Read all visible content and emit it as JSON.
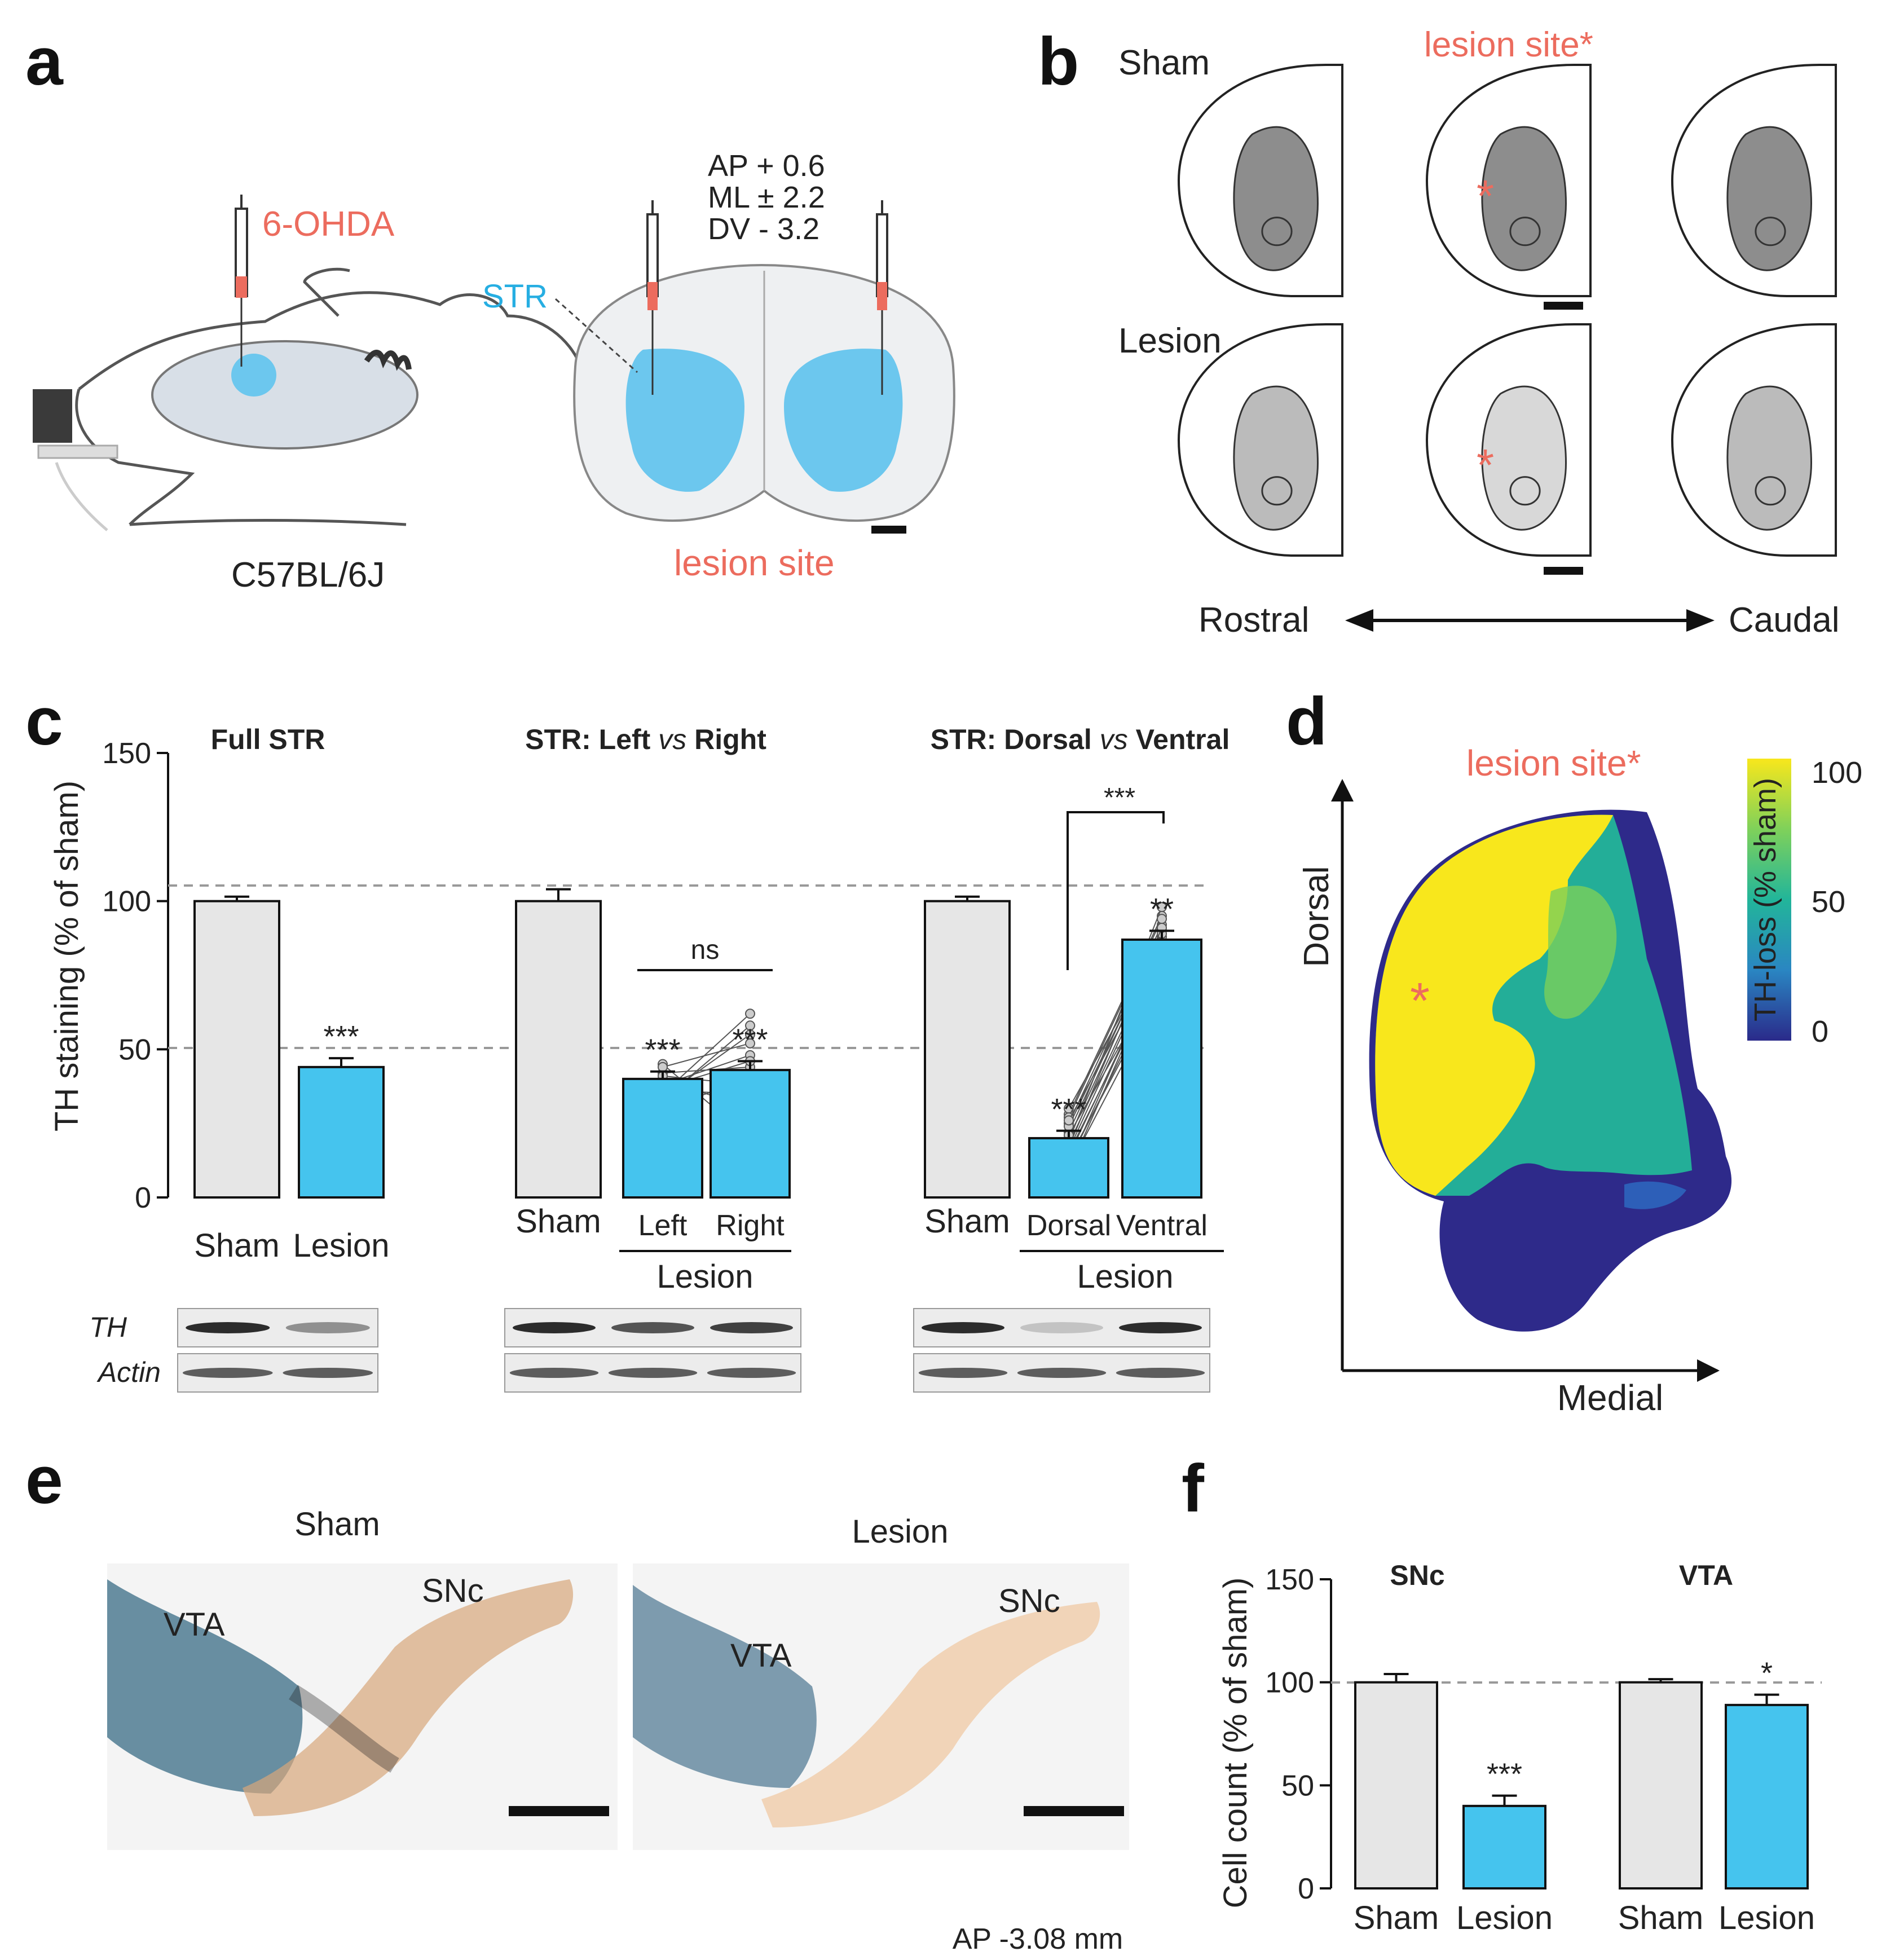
{
  "panel_labels": {
    "a": "a",
    "b": "b",
    "c": "c",
    "d": "d",
    "e": "e",
    "f": "f"
  },
  "panel_a": {
    "injectant": "6-OHDA",
    "coords": [
      "AP  + 0.6",
      "ML  ± 2.2",
      "DV  -  3.2"
    ],
    "region": "STR",
    "lesion_label": "lesion site",
    "strain": "C57BL/6J"
  },
  "panel_b": {
    "row_sham": "Sham",
    "row_lesion": "Lesion",
    "lesion_label": "lesion site*",
    "asterisk": "*",
    "rostral": "Rostral",
    "caudal": "Caudal"
  },
  "panel_c": {
    "ylabel": "TH staining (% of sham)",
    "yticks": [
      "0",
      "50",
      "100",
      "150"
    ],
    "subplots": [
      {
        "title": "Full STR",
        "categories": [
          "Sham",
          "Lesion"
        ],
        "values": [
          100,
          44
        ],
        "errors": [
          1.5,
          3
        ],
        "stars": [
          "",
          "***"
        ]
      },
      {
        "title_pre": "STR: Left ",
        "title_it": "vs",
        "title_post": " Right",
        "categories": [
          "Sham",
          "Left",
          "Right"
        ],
        "values": [
          100,
          40,
          43
        ],
        "errors": [
          4,
          2.5,
          3
        ],
        "stars": [
          "",
          "***",
          "***"
        ],
        "bracket": "ns",
        "group_label": "Lesion"
      },
      {
        "title_pre": "STR: Dorsal ",
        "title_it": "vs",
        "title_post": " Ventral",
        "categories": [
          "Sham",
          "Dorsal",
          "Ventral"
        ],
        "values": [
          100,
          20,
          87
        ],
        "errors": [
          1.5,
          2.5,
          3
        ],
        "stars": [
          "",
          "***",
          "**"
        ],
        "bracket": "***",
        "group_label": "Lesion"
      }
    ],
    "blot_labels": [
      "TH",
      "Actin"
    ]
  },
  "panel_d": {
    "lesion_label": "lesion site*",
    "asterisk": "*",
    "y_axis": "Dorsal",
    "x_axis": "Medial",
    "colorbar_label": "TH-loss (% sham)",
    "colorbar_ticks": [
      "100",
      "50",
      "0"
    ]
  },
  "panel_e": {
    "sham_title": "Sham",
    "lesion_title": "Lesion",
    "vta": "VTA",
    "snc": "SNc",
    "ap_label": "AP -3.08 mm"
  },
  "panel_f": {
    "ylabel": "Cell count (% of sham)",
    "yticks": [
      "0",
      "50",
      "100",
      "150"
    ],
    "subplots": [
      {
        "title": "SNc",
        "categories": [
          "Sham",
          "Lesion"
        ],
        "values": [
          100,
          40
        ],
        "errors": [
          4,
          5
        ],
        "stars": [
          "",
          "***"
        ]
      },
      {
        "title": "VTA",
        "categories": [
          "Sham",
          "Lesion"
        ],
        "values": [
          100,
          89
        ],
        "errors": [
          1.5,
          5
        ],
        "stars": [
          "",
          "*"
        ]
      }
    ]
  },
  "chart_data": [
    {
      "type": "bar",
      "title": "Full STR",
      "ylabel": "TH staining (% of sham)",
      "ylim": [
        0,
        150
      ],
      "categories": [
        "Sham",
        "Lesion"
      ],
      "values": [
        100,
        44
      ]
    },
    {
      "type": "bar",
      "title": "STR: Left vs Right",
      "ylabel": "TH staining (% of sham)",
      "ylim": [
        0,
        150
      ],
      "categories": [
        "Sham",
        "Left",
        "Right"
      ],
      "values": [
        100,
        40,
        43
      ]
    },
    {
      "type": "bar",
      "title": "STR: Dorsal vs Ventral",
      "ylabel": "TH staining (% of sham)",
      "ylim": [
        0,
        150
      ],
      "categories": [
        "Sham",
        "Dorsal",
        "Ventral"
      ],
      "values": [
        100,
        20,
        87
      ]
    },
    {
      "type": "bar",
      "title": "SNc",
      "ylabel": "Cell count (% of sham)",
      "ylim": [
        0,
        150
      ],
      "categories": [
        "Sham",
        "Lesion"
      ],
      "values": [
        100,
        40
      ]
    },
    {
      "type": "bar",
      "title": "VTA",
      "ylabel": "Cell count (% of sham)",
      "ylim": [
        0,
        150
      ],
      "categories": [
        "Sham",
        "Lesion"
      ],
      "values": [
        100,
        89
      ]
    }
  ],
  "colors": {
    "sham": "#e6e6e6",
    "lesion": "#45c4ee",
    "accent": "#ec6c5e",
    "str": "#26aee2"
  }
}
